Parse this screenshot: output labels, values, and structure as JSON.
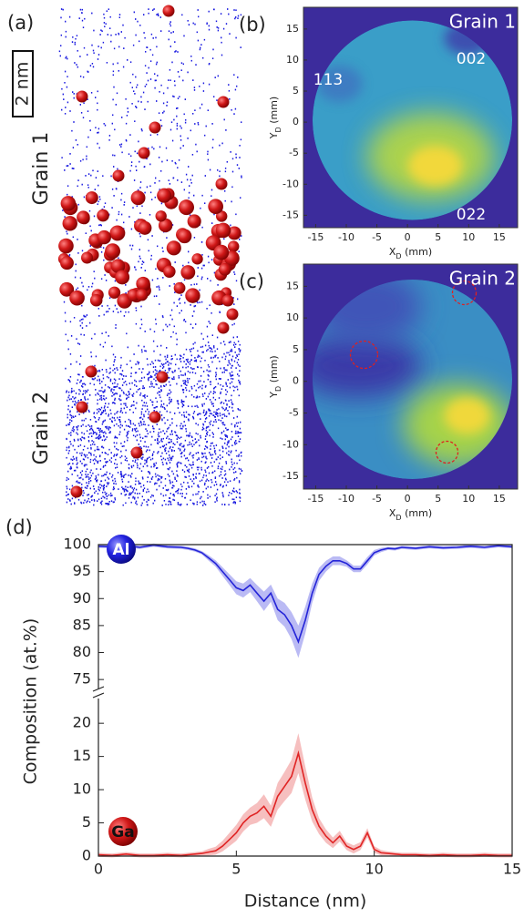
{
  "panel_a": {
    "label": "(a)",
    "scale_bar": "2 nm",
    "grain_labels": [
      "Grain 1",
      "Grain 2"
    ]
  },
  "chart_data": [
    {
      "type": "detector-map",
      "label": "(b)",
      "grain": "Grain 1",
      "poles": [
        "113",
        "002",
        "022"
      ],
      "x_label": [
        "X",
        "D",
        " (mm)"
      ],
      "y_label": [
        "Y",
        "D",
        " (mm)"
      ],
      "xlim": [
        -17,
        18
      ],
      "ylim": [
        -17,
        18.5
      ],
      "xticks": [
        -15,
        -10,
        -5,
        0,
        5,
        10,
        15
      ],
      "yticks": [
        -15,
        -10,
        -5,
        0,
        5,
        10,
        15
      ]
    },
    {
      "type": "detector-map",
      "label": "(c)",
      "grain": "Grain 2",
      "x_label": [
        "X",
        "D",
        " (mm)"
      ],
      "y_label": [
        "Y",
        "D",
        " (mm)"
      ],
      "xlim": [
        -17,
        18
      ],
      "ylim": [
        -17,
        18.5
      ],
      "xticks": [
        -15,
        -10,
        -5,
        0,
        5,
        10,
        15
      ],
      "yticks": [
        -15,
        -10,
        -5,
        0,
        5,
        10,
        15
      ]
    },
    {
      "type": "line",
      "label": "(d)",
      "x_label": "Distance (nm)",
      "y_label": "Composition (at.%)",
      "xlim": [
        0,
        15
      ],
      "xticks": [
        0,
        5,
        10,
        15
      ],
      "y_segments": [
        {
          "ylim": [
            73,
            100
          ],
          "yticks": [
            75,
            80,
            85,
            90,
            95,
            100
          ]
        },
        {
          "ylim": [
            0,
            24
          ],
          "yticks": [
            0,
            5,
            10,
            15,
            20
          ]
        }
      ],
      "x": [
        0,
        0.5,
        1,
        1.5,
        2,
        2.5,
        3,
        3.25,
        3.5,
        3.75,
        4,
        4.25,
        4.5,
        4.75,
        5,
        5.25,
        5.5,
        5.75,
        6,
        6.25,
        6.5,
        6.75,
        7,
        7.25,
        7.5,
        7.75,
        8,
        8.25,
        8.5,
        8.75,
        9,
        9.25,
        9.5,
        9.75,
        10,
        10.25,
        10.5,
        10.75,
        11,
        11.5,
        12,
        12.5,
        13,
        13.5,
        14,
        14.5,
        15
      ],
      "series": [
        {
          "name": "Al",
          "color": "#2424d8",
          "band_color": "#aeaef2",
          "segment": 0,
          "values": [
            99.7,
            99.6,
            99.8,
            99.5,
            99.9,
            99.6,
            99.5,
            99.3,
            99,
            98.5,
            97.5,
            96.5,
            95,
            93.5,
            92,
            91.5,
            92.5,
            91,
            89.5,
            91,
            88,
            87,
            85,
            82,
            86,
            91,
            94.5,
            96,
            97,
            97,
            96.5,
            95.5,
            95.5,
            97,
            98.5,
            99,
            99.3,
            99.2,
            99.5,
            99.3,
            99.6,
            99.4,
            99.5,
            99.7,
            99.5,
            99.8,
            99.6
          ],
          "errors": [
            0.3,
            0.3,
            0.3,
            0.3,
            0.3,
            0.3,
            0.3,
            0.3,
            0.3,
            0.3,
            0.5,
            0.6,
            0.8,
            1,
            1.2,
            1.3,
            1.3,
            1.5,
            1.8,
            1.6,
            2,
            2.2,
            2.5,
            3,
            2.5,
            1.8,
            1.2,
            1,
            0.8,
            0.8,
            0.6,
            0.6,
            0.6,
            0.7,
            0.5,
            0.4,
            0.3,
            0.3,
            0.3,
            0.3,
            0.3,
            0.3,
            0.3,
            0.3,
            0.3,
            0.3,
            0.3
          ]
        },
        {
          "name": "Ga",
          "color": "#e02424",
          "band_color": "#f5b4b4",
          "segment": 1,
          "values": [
            0.2,
            0.1,
            0.3,
            0.1,
            0.1,
            0.2,
            0.1,
            0.2,
            0.3,
            0.4,
            0.6,
            0.8,
            1.5,
            2.5,
            3.5,
            5,
            6,
            6.5,
            7.5,
            6,
            9,
            10.5,
            12,
            15.5,
            11,
            7,
            4.5,
            3,
            2,
            3,
            1.5,
            1,
            1.5,
            3.5,
            1,
            0.5,
            0.4,
            0.3,
            0.2,
            0.2,
            0.1,
            0.2,
            0.1,
            0.1,
            0.2,
            0.1,
            0.1
          ],
          "errors": [
            0.3,
            0.3,
            0.3,
            0.3,
            0.3,
            0.3,
            0.3,
            0.3,
            0.3,
            0.3,
            0.5,
            0.6,
            0.8,
            1,
            1.2,
            1.3,
            1.3,
            1.5,
            1.8,
            1.6,
            2,
            2.2,
            2.5,
            3,
            2.5,
            1.8,
            1.2,
            1,
            0.8,
            0.8,
            0.6,
            0.6,
            0.6,
            0.7,
            0.5,
            0.4,
            0.3,
            0.3,
            0.3,
            0.3,
            0.3,
            0.3,
            0.3,
            0.3,
            0.3,
            0.3,
            0.3
          ]
        }
      ]
    }
  ]
}
